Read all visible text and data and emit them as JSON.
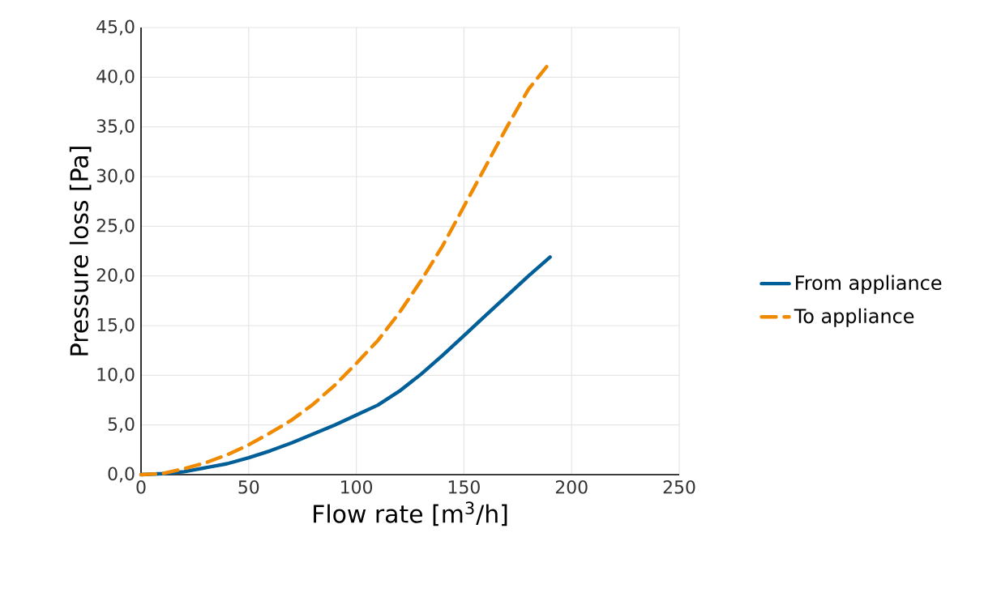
{
  "chart_data": {
    "type": "line",
    "xlabel": "Flow rate [m$^{3}$/h]",
    "ylabel": "Pressure loss [Pa]",
    "xlim": [
      0,
      250
    ],
    "xticks": [
      0,
      50,
      100,
      150,
      200,
      250
    ],
    "ylim": [
      0,
      45
    ],
    "yticks": [
      {
        "value": 0,
        "label": "0,0"
      },
      {
        "value": 5,
        "label": "5,0"
      },
      {
        "value": 10,
        "label": "10,0"
      },
      {
        "value": 15,
        "label": "15,0"
      },
      {
        "value": 20,
        "label": "20,0"
      },
      {
        "value": 25,
        "label": "25,0"
      },
      {
        "value": 30,
        "label": "30,0"
      },
      {
        "value": 35,
        "label": "35,0"
      },
      {
        "value": 40,
        "label": "40,0"
      },
      {
        "value": 45,
        "label": "45,0"
      }
    ],
    "grid": true,
    "legend": "right",
    "marker": "none",
    "x": [
      0,
      10,
      20,
      30,
      40,
      50,
      60,
      70,
      80,
      90,
      100,
      110,
      120,
      130,
      140,
      150,
      160,
      170,
      180,
      190
    ],
    "series": [
      {
        "name": "From appliance",
        "color": "#005f99",
        "line_style": "solid",
        "values": [
          0,
          0.1,
          0.3,
          0.7,
          1.1,
          1.7,
          2.4,
          3.2,
          4.1,
          5.0,
          6.0,
          7.0,
          8.4,
          10.1,
          12.0,
          14.0,
          16.0,
          18.0,
          20.0,
          21.9
        ]
      },
      {
        "name": "To appliance",
        "color": "#f08a00",
        "line_style": "dashed",
        "values": [
          0,
          0.1,
          0.6,
          1.2,
          2.0,
          3.0,
          4.2,
          5.5,
          7.1,
          9.0,
          11.2,
          13.5,
          16.3,
          19.5,
          23.0,
          27.0,
          31.0,
          35.0,
          38.8,
          41.5
        ]
      }
    ]
  }
}
